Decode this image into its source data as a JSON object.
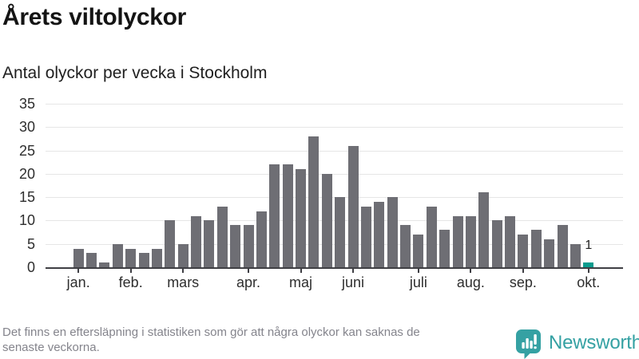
{
  "header": {
    "title": "Årets viltolyckor",
    "subtitle": "Antal olyckor per vecka i Stockholm"
  },
  "chart_data": {
    "type": "bar",
    "title": "Årets viltolyckor",
    "subtitle": "Antal olyckor per vecka i Stockholm",
    "xlabel": "",
    "ylabel": "",
    "x_unit": "vecka",
    "x": [
      1,
      2,
      3,
      4,
      5,
      6,
      7,
      8,
      9,
      10,
      11,
      12,
      13,
      14,
      15,
      16,
      17,
      18,
      19,
      20,
      21,
      22,
      23,
      24,
      25,
      26,
      27,
      28,
      29,
      30,
      31,
      32,
      33,
      34,
      35,
      36,
      37,
      38,
      39,
      40
    ],
    "values": [
      4,
      3,
      1,
      5,
      4,
      3,
      4,
      10,
      5,
      11,
      10,
      13,
      9,
      9,
      12,
      22,
      22,
      21,
      28,
      20,
      15,
      26,
      13,
      14,
      15,
      9,
      7,
      13,
      8,
      11,
      11,
      16,
      10,
      11,
      7,
      8,
      6,
      9,
      5,
      1
    ],
    "ylim": [
      0,
      35
    ],
    "yticks": [
      0,
      5,
      10,
      15,
      20,
      25,
      30,
      35
    ],
    "grid": "horizontal",
    "legend": "none",
    "month_ticks": [
      {
        "label": "jan.",
        "week": 1
      },
      {
        "label": "feb.",
        "week": 5
      },
      {
        "label": "mars",
        "week": 9
      },
      {
        "label": "apr.",
        "week": 14
      },
      {
        "label": "maj",
        "week": 18
      },
      {
        "label": "juni",
        "week": 22
      },
      {
        "label": "juli",
        "week": 27
      },
      {
        "label": "aug.",
        "week": 31
      },
      {
        "label": "sep.",
        "week": 35
      },
      {
        "label": "okt.",
        "week": 40
      }
    ],
    "bar_color": "#6e6e74",
    "highlight_color": "#0a9c8e",
    "highlight_index": 39,
    "annotations": [
      {
        "index": 39,
        "label": "1"
      }
    ]
  },
  "footer": {
    "note_line1": "Det finns en eftersläpning i statistiken som gör att några olyckor kan saknas de",
    "note_line2": "senaste veckorna.",
    "brand": "Newsworthy",
    "brand_color": "#35a1a3"
  }
}
